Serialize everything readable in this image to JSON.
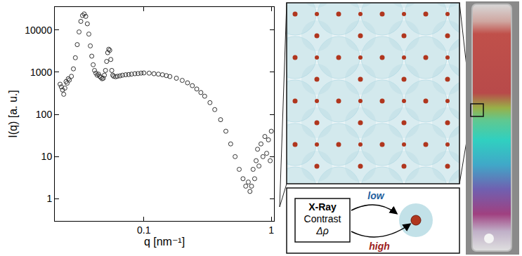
{
  "chart_data": {
    "type": "scatter",
    "x_label": "q [nm⁻¹]",
    "y_label": "I(q) [a. u.]",
    "log": true,
    "grid": false,
    "marker": "circle-open",
    "color": "#333333",
    "xlim": [
      0.02,
      1.05
    ],
    "ylim": [
      0.3,
      35000
    ],
    "xticks": [
      0.1,
      1
    ],
    "yticks": [
      1,
      10,
      100,
      1000,
      10000
    ],
    "x": [
      0.022,
      0.0225,
      0.023,
      0.0235,
      0.024,
      0.0245,
      0.025,
      0.0255,
      0.026,
      0.027,
      0.028,
      0.029,
      0.03,
      0.031,
      0.032,
      0.033,
      0.034,
      0.035,
      0.036,
      0.037,
      0.038,
      0.039,
      0.04,
      0.041,
      0.042,
      0.043,
      0.044,
      0.045,
      0.046,
      0.047,
      0.048,
      0.049,
      0.05,
      0.051,
      0.052,
      0.053,
      0.054,
      0.055,
      0.056,
      0.057,
      0.058,
      0.06,
      0.062,
      0.065,
      0.068,
      0.072,
      0.076,
      0.08,
      0.085,
      0.09,
      0.095,
      0.1,
      0.11,
      0.12,
      0.13,
      0.14,
      0.15,
      0.16,
      0.18,
      0.2,
      0.22,
      0.24,
      0.26,
      0.28,
      0.3,
      0.33,
      0.36,
      0.4,
      0.44,
      0.48,
      0.52,
      0.56,
      0.6,
      0.63,
      0.66,
      0.68,
      0.7,
      0.72,
      0.74,
      0.76,
      0.78,
      0.8,
      0.83,
      0.86,
      0.89,
      0.92,
      0.95,
      0.98,
      1.0
    ],
    "values": [
      520,
      450,
      380,
      300,
      420,
      600,
      550,
      700,
      650,
      800,
      1200,
      2200,
      4500,
      9000,
      16000,
      22000,
      24000,
      21000,
      14000,
      8000,
      4200,
      2400,
      1500,
      1100,
      950,
      850,
      900,
      800,
      750,
      700,
      720,
      850,
      1100,
      1800,
      2900,
      3500,
      3300,
      2000,
      1100,
      850,
      800,
      780,
      800,
      820,
      850,
      870,
      880,
      900,
      920,
      930,
      950,
      960,
      950,
      920,
      900,
      870,
      830,
      790,
      720,
      640,
      560,
      480,
      400,
      330,
      270,
      190,
      130,
      75,
      40,
      20,
      10,
      5,
      3,
      2,
      2.5,
      1.5,
      2,
      5,
      3,
      8,
      15,
      6,
      20,
      10,
      30,
      12,
      25,
      8,
      40
    ]
  },
  "diagram": {
    "box_text": [
      "X-Ray",
      "Contrast",
      "Δρ"
    ],
    "arrows": [
      {
        "label": "low",
        "color": "#1f5f9e"
      },
      {
        "label": "high",
        "color": "#9c1c1c"
      }
    ]
  }
}
